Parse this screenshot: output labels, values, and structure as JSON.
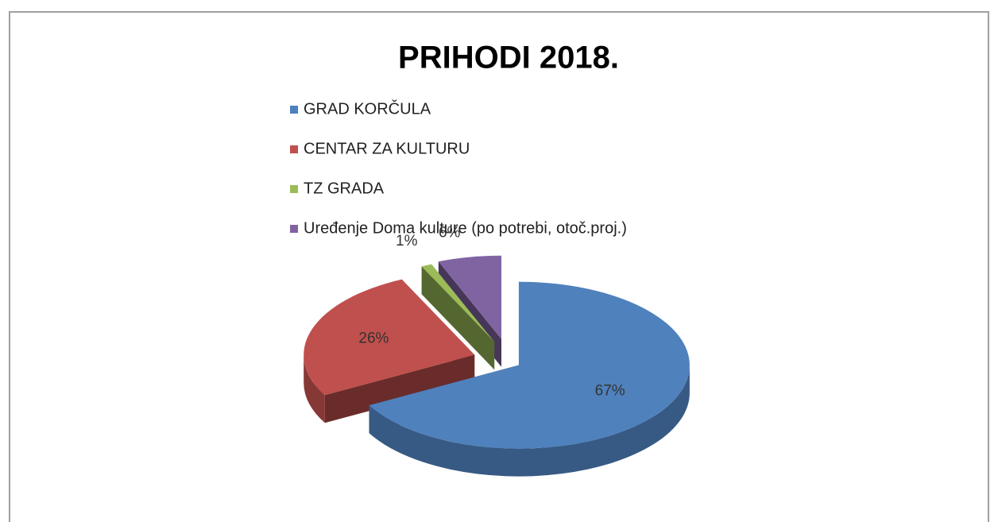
{
  "chart_data": {
    "type": "pie3d",
    "title": "PRIHODI 2018.",
    "categories": [
      "GRAD KORČULA",
      "CENTAR ZA KULTURU",
      "TZ GRADA",
      "Uređenje Doma kulture (po potrebi, otoč.proj.)"
    ],
    "values": [
      67,
      26,
      1,
      6
    ],
    "value_labels": [
      "67%",
      "26%",
      "1%",
      "6%"
    ],
    "colors": [
      "#4f81bd",
      "#c0504d",
      "#9bbb59",
      "#8064a2"
    ],
    "legend": "top"
  }
}
